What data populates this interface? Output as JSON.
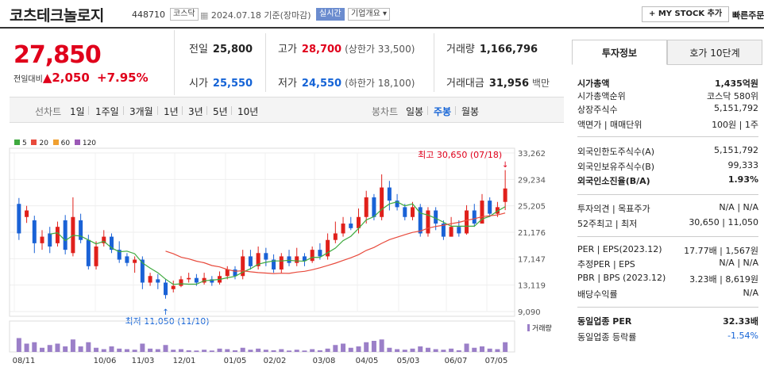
{
  "header": {
    "name": "코츠테크놀로지",
    "code": "448710",
    "market": "코스닥",
    "date": "2024.07.18 기준(장마감)",
    "realtime": "실시간",
    "overview": "기업개요",
    "mystock": "+ MY STOCK 추가",
    "quick_order": "빠른주문"
  },
  "price": {
    "current": "27,850",
    "change_label": "전일대비",
    "change": "▲2,050",
    "change_pct": "+7.95%"
  },
  "stats": {
    "prev_label": "전일",
    "prev": "25,800",
    "high_label": "고가",
    "high": "28,700",
    "upper_limit": "(상한가 33,500)",
    "volume_label": "거래량",
    "volume": "1,166,796",
    "open_label": "시가",
    "open": "25,550",
    "low_label": "저가",
    "low": "24,550",
    "lower_limit": "(하한가 18,100)",
    "amount_label": "거래대금",
    "amount": "31,956",
    "amount_unit": "백만"
  },
  "chart_tabs": {
    "line_label": "선차트",
    "periods": [
      "1일",
      "1주일",
      "3개월",
      "1년",
      "3년",
      "5년",
      "10년"
    ],
    "candle_label": "봉차트",
    "candles": [
      "일봉",
      "주봉",
      "월봉"
    ],
    "active_candle": "주봉"
  },
  "legend": [
    {
      "label": "5",
      "color": "#3faa3f"
    },
    {
      "label": "20",
      "color": "#e84a3c"
    },
    {
      "label": "60",
      "color": "#f0a030"
    },
    {
      "label": "120",
      "color": "#9b59b6"
    }
  ],
  "chart_data": {
    "type": "candlestick",
    "y_ticks": [
      "33,262",
      "29,234",
      "25,205",
      "21,176",
      "17,147",
      "13,119",
      "9,090"
    ],
    "x_ticks": [
      "08/11",
      "10/06",
      "11/03",
      "12/01",
      "01/05",
      "02/02",
      "03/08",
      "04/05",
      "05/03",
      "06/07",
      "07/05"
    ],
    "ylim": [
      9090,
      33262
    ],
    "high_note": "최고 30,650 (07/18)",
    "low_note": "최저 11,050 (11/10)",
    "volume_label": "거래량",
    "candles": [
      [
        25500,
        21000,
        26400,
        20000
      ],
      [
        23500,
        24500,
        25200,
        22600
      ],
      [
        23000,
        19500,
        23700,
        18000
      ],
      [
        19500,
        20500,
        21500,
        18500
      ],
      [
        21000,
        19000,
        22000,
        18000
      ],
      [
        19500,
        22000,
        22800,
        19000
      ],
      [
        23000,
        18500,
        23800,
        17800
      ],
      [
        18000,
        23500,
        26500,
        17500
      ],
      [
        23000,
        20000,
        24000,
        19500
      ],
      [
        20000,
        16000,
        20800,
        15500
      ],
      [
        16000,
        19000,
        19800,
        15500
      ],
      [
        19500,
        20500,
        21500,
        19000
      ],
      [
        20500,
        18500,
        21000,
        18000
      ],
      [
        18500,
        17000,
        19800,
        16500
      ],
      [
        17500,
        16500,
        18000,
        16000
      ],
      [
        16500,
        17000,
        17500,
        15000
      ],
      [
        17000,
        13500,
        17500,
        12500
      ],
      [
        13500,
        14500,
        15000,
        13000
      ],
      [
        14000,
        13500,
        14800,
        12500
      ],
      [
        13500,
        11600,
        14000,
        11050
      ],
      [
        12500,
        13000,
        13800,
        12000
      ],
      [
        13000,
        14000,
        14500,
        12800
      ],
      [
        14000,
        14200,
        15000,
        13500
      ],
      [
        14200,
        13500,
        14800,
        13000
      ],
      [
        13500,
        14200,
        15000,
        13200
      ],
      [
        14000,
        13500,
        14500,
        13000
      ],
      [
        13500,
        14500,
        15200,
        13200
      ],
      [
        14500,
        15500,
        16000,
        14000
      ],
      [
        15500,
        14500,
        16000,
        14000
      ],
      [
        14500,
        17500,
        18500,
        14000
      ],
      [
        17500,
        16000,
        18500,
        15500
      ],
      [
        16000,
        18000,
        19000,
        15500
      ],
      [
        18000,
        17000,
        18800,
        16000
      ],
      [
        17000,
        15500,
        17800,
        15000
      ],
      [
        15500,
        17500,
        18000,
        15000
      ],
      [
        17500,
        16500,
        18500,
        16000
      ],
      [
        16500,
        17500,
        18800,
        16000
      ],
      [
        17500,
        16800,
        18000,
        16000
      ],
      [
        16800,
        18500,
        19000,
        16500
      ],
      [
        18500,
        17500,
        19500,
        17000
      ],
      [
        17500,
        20000,
        21000,
        17000
      ],
      [
        20000,
        21000,
        22800,
        19500
      ],
      [
        21000,
        22500,
        23500,
        20500
      ],
      [
        22500,
        21800,
        23500,
        21500
      ],
      [
        21800,
        23500,
        24800,
        21000
      ],
      [
        23500,
        26500,
        27500,
        22500
      ],
      [
        26500,
        23500,
        27000,
        23000
      ],
      [
        23500,
        28000,
        30000,
        23000
      ],
      [
        28000,
        26000,
        29000,
        24500
      ],
      [
        26000,
        25000,
        27000,
        24500
      ],
      [
        25000,
        23500,
        25500,
        23000
      ],
      [
        23500,
        25000,
        25800,
        23000
      ],
      [
        25000,
        21000,
        25500,
        20500
      ],
      [
        21000,
        24500,
        25000,
        20500
      ],
      [
        24500,
        22500,
        25000,
        21500
      ],
      [
        22500,
        20500,
        23000,
        20000
      ],
      [
        20500,
        22000,
        23500,
        20500
      ],
      [
        22000,
        21000,
        23000,
        20500
      ],
      [
        21000,
        24500,
        25300,
        20800
      ],
      [
        24500,
        22500,
        25500,
        22000
      ],
      [
        22500,
        26000,
        27000,
        22500
      ],
      [
        26000,
        24000,
        26500,
        23500
      ],
      [
        24000,
        25000,
        25800,
        23500
      ],
      [
        25800,
        27850,
        30650,
        24550
      ]
    ],
    "volumes": [
      0.5,
      0.3,
      0.35,
      0.15,
      0.25,
      0.3,
      0.2,
      0.45,
      0.2,
      0.35,
      0.15,
      0.1,
      0.2,
      0.12,
      0.1,
      0.08,
      0.3,
      0.12,
      0.1,
      0.25,
      0.08,
      0.1,
      0.06,
      0.05,
      0.08,
      0.05,
      0.12,
      0.1,
      0.06,
      0.15,
      0.08,
      0.12,
      0.08,
      0.06,
      0.1,
      0.05,
      0.08,
      0.05,
      0.1,
      0.06,
      0.12,
      0.25,
      0.3,
      0.15,
      0.2,
      0.35,
      0.4,
      0.45,
      0.15,
      0.1,
      0.08,
      0.12,
      0.2,
      0.15,
      0.1,
      0.08,
      0.12,
      0.06,
      0.3,
      0.15,
      0.2,
      0.12,
      0.1,
      0.35
    ]
  },
  "right_panel": {
    "tab_active": "투자정보",
    "tab_other": "호가 10단계",
    "rows": [
      {
        "k": "시가총액",
        "v": "1,435억원",
        "b": true
      },
      {
        "k": "시가총액순위",
        "v": "코스닥 580위"
      },
      {
        "k": "상장주식수",
        "v": "5,151,792"
      },
      {
        "k": "액면가 | 매매단위",
        "v": "100원 | 1주"
      },
      {
        "k": "외국인한도주식수(A)",
        "v": "5,151,792"
      },
      {
        "k": "외국인보유주식수(B)",
        "v": "99,333"
      },
      {
        "k": "외국인소진율(B/A)",
        "v": "1.93%",
        "b": true
      },
      {
        "k": "투자의견 | 목표주가",
        "v": "N/A | N/A"
      },
      {
        "k": "52주최고 | 최저",
        "v": "30,650 | 11,050"
      },
      {
        "k": "PER | EPS(2023.12)",
        "v": "17.77배 | 1,567원"
      },
      {
        "k": "추정PER | EPS",
        "v": "N/A | N/A"
      },
      {
        "k": "PBR | BPS (2023.12)",
        "v": "3.23배 | 8,619원"
      },
      {
        "k": "배당수익률",
        "v": "N/A"
      },
      {
        "k": "동일업종 PER",
        "v": "32.33배",
        "b": true
      },
      {
        "k": "동일업종 등락률",
        "v": "-1.54%"
      }
    ]
  }
}
